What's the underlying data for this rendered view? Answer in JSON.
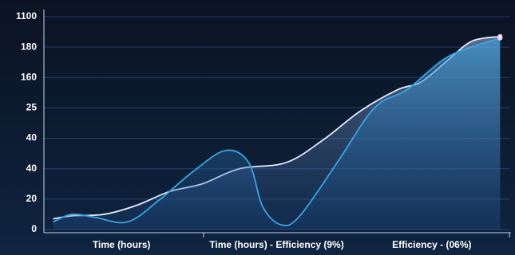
{
  "chart_data": {
    "type": "line",
    "categories": [
      "Time (hours)",
      "Time (hours) - Efficiency (9%)",
      "Efficiency - (06%)"
    ],
    "xlim": [
      0,
      100
    ],
    "ylim": [
      0,
      140
    ],
    "yticks": [
      0,
      20,
      40,
      {
        "value": 60,
        "label": "40"
      },
      {
        "value": 80,
        "label": "25"
      },
      {
        "value": 100,
        "label": "160"
      },
      {
        "value": 120,
        "label": "180"
      },
      {
        "value": 140,
        "label": "1100"
      }
    ],
    "grid": true,
    "series": [
      {
        "color": "#e4ecff",
        "x": [
          2,
          6,
          13,
          20,
          27,
          34,
          42,
          52,
          60,
          68,
          76,
          81,
          87,
          92,
          98
        ],
        "values": [
          7,
          9,
          10,
          16,
          25,
          30,
          40,
          44,
          59,
          78,
          92,
          97,
          112,
          124,
          127
        ]
      },
      {
        "color": "#3aa4e2",
        "x": [
          2,
          6,
          11,
          18,
          25,
          32,
          39,
          44,
          47,
          51,
          55,
          63,
          71,
          78,
          87,
          98
        ],
        "values": [
          5,
          10,
          8,
          5,
          20,
          38,
          52,
          44,
          15,
          3,
          9,
          44,
          80,
          92,
          114,
          126
        ]
      }
    ]
  }
}
